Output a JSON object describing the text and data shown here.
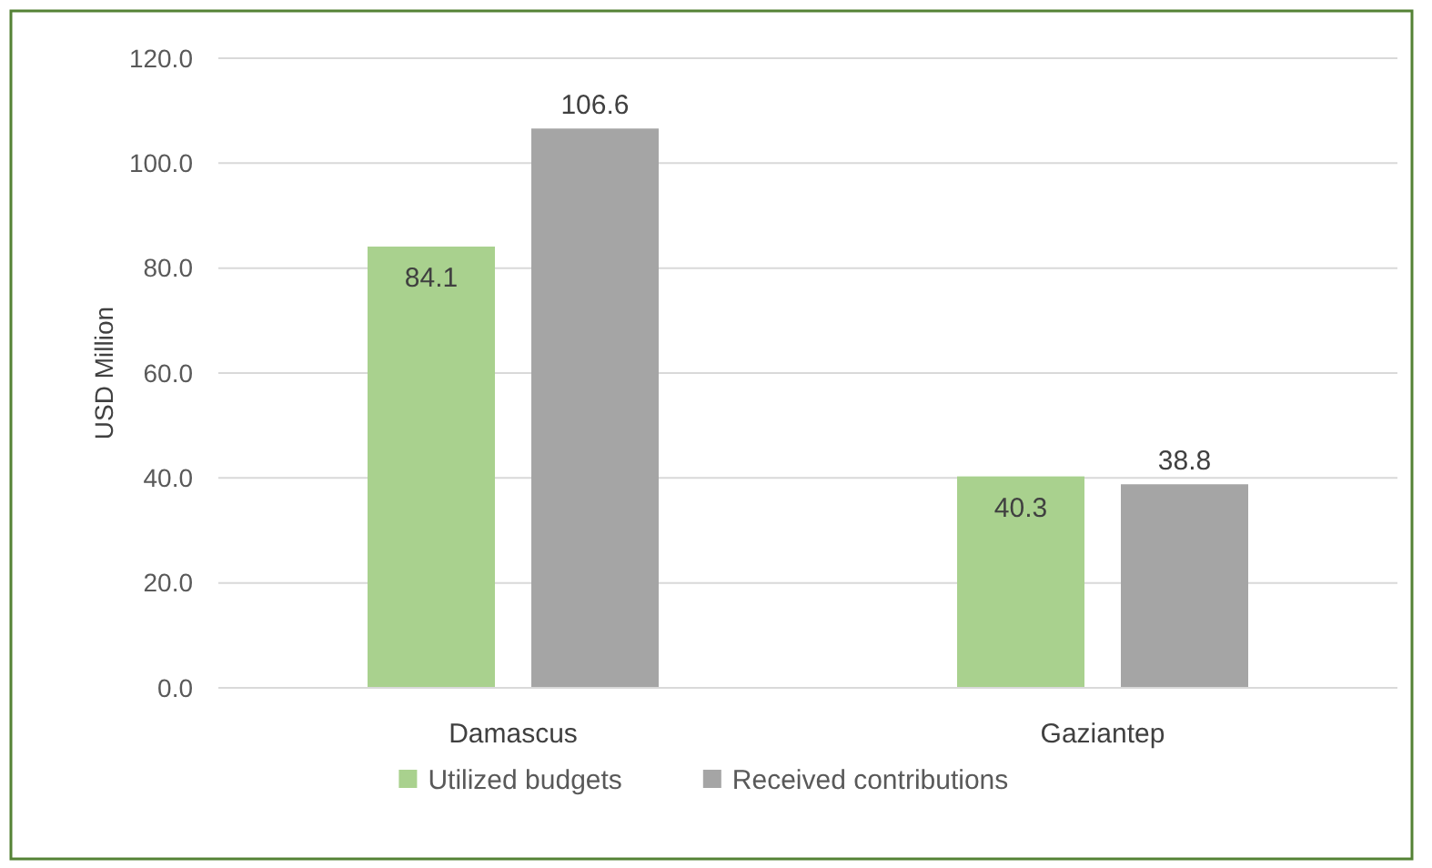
{
  "chart_data": {
    "type": "bar",
    "ylabel": "USD Million",
    "categories": [
      "Damascus",
      "Gaziantep"
    ],
    "series": [
      {
        "name": "Utilized budgets",
        "color": "#a9d18e",
        "values": [
          84.1,
          40.3
        ]
      },
      {
        "name": "Received contributions",
        "color": "#a5a5a5",
        "values": [
          106.6,
          38.8
        ]
      }
    ],
    "ylim": [
      0,
      120
    ],
    "yticks": [
      {
        "value": 0,
        "label": "0.0"
      },
      {
        "value": 20,
        "label": "20.0"
      },
      {
        "value": 40,
        "label": "40.0"
      },
      {
        "value": 60,
        "label": "60.0"
      },
      {
        "value": 80,
        "label": "80.0"
      },
      {
        "value": 100,
        "label": "100.0"
      },
      {
        "value": 120,
        "label": "120.0"
      }
    ],
    "grid": "y",
    "legend": "bottom",
    "data_labels": true
  }
}
